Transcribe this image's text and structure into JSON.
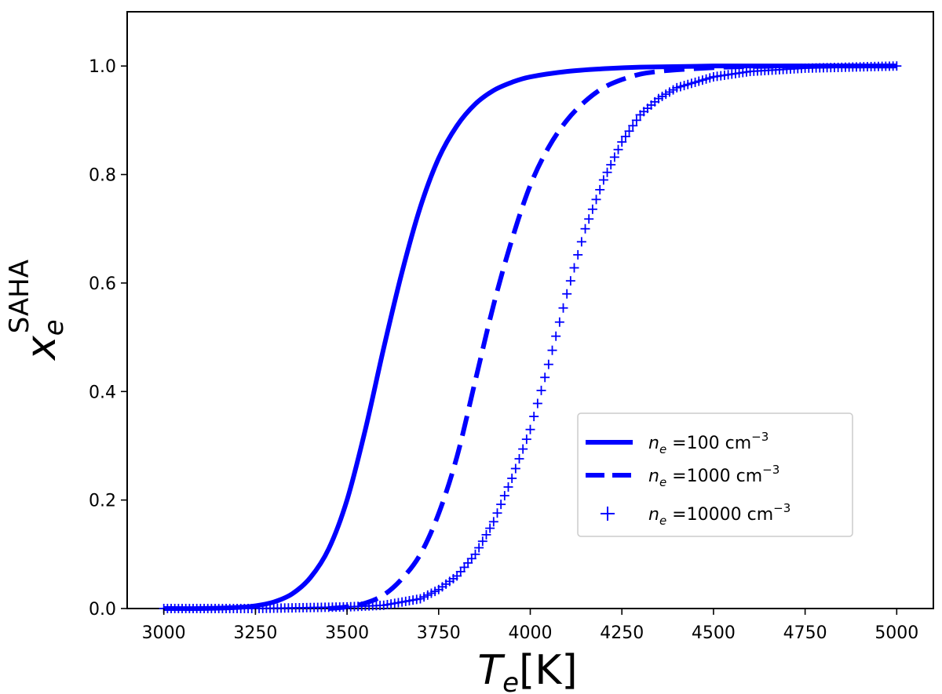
{
  "chart_data": {
    "type": "line",
    "xlabel": {
      "main": "T",
      "sub": "e",
      "unit": "[K]"
    },
    "ylabel": {
      "main": "x",
      "sub": "e",
      "sup": "SAHA"
    },
    "xlim": [
      2900,
      5100
    ],
    "ylim": [
      0.0,
      1.1
    ],
    "xticks": [
      3000,
      3250,
      3500,
      3750,
      4000,
      4250,
      4500,
      4750,
      5000
    ],
    "yticks": [
      0.0,
      0.2,
      0.4,
      0.6,
      0.8,
      1.0
    ],
    "xtick_labels": [
      "3000",
      "3250",
      "3500",
      "3750",
      "4000",
      "4250",
      "4500",
      "4750",
      "5000"
    ],
    "ytick_labels": [
      "0.0",
      "0.2",
      "0.4",
      "0.6",
      "0.8",
      "1.0"
    ],
    "grid": false,
    "legend_position": "center-right",
    "color": "#0000ff",
    "series": [
      {
        "name": "n_e =100 cm^-3",
        "label": {
          "var": "n",
          "sub": "e",
          "text": " =100 cm",
          "sup": "−3"
        },
        "style": "solid",
        "x": [
          3000,
          3100,
          3200,
          3250,
          3300,
          3350,
          3400,
          3450,
          3500,
          3550,
          3600,
          3650,
          3700,
          3750,
          3800,
          3850,
          3900,
          3950,
          4000,
          4100,
          4200,
          4300,
          4500,
          4750,
          5000
        ],
        "y": [
          0.0,
          0.0,
          0.002,
          0.005,
          0.012,
          0.027,
          0.057,
          0.11,
          0.2,
          0.33,
          0.48,
          0.62,
          0.74,
          0.83,
          0.89,
          0.93,
          0.955,
          0.97,
          0.98,
          0.99,
          0.995,
          0.998,
          1.0,
          1.0,
          1.0
        ]
      },
      {
        "name": "n_e =1000 cm^-3",
        "label": {
          "var": "n",
          "sub": "e",
          "text": " =1000 cm",
          "sup": "−3"
        },
        "style": "dashed",
        "x": [
          3450,
          3500,
          3550,
          3600,
          3650,
          3700,
          3750,
          3800,
          3850,
          3900,
          3950,
          4000,
          4050,
          4100,
          4150,
          4200,
          4250,
          4300,
          4350,
          4400,
          4500,
          4600,
          4750,
          5000
        ],
        "y": [
          0.0,
          0.003,
          0.01,
          0.025,
          0.055,
          0.1,
          0.175,
          0.28,
          0.42,
          0.56,
          0.68,
          0.78,
          0.85,
          0.9,
          0.935,
          0.96,
          0.975,
          0.985,
          0.99,
          0.993,
          0.997,
          0.999,
          1.0,
          1.0
        ]
      },
      {
        "name": "n_e =10000 cm^-3",
        "label": {
          "var": "n",
          "sub": "e",
          "text": " =10000 cm",
          "sup": "−3"
        },
        "style": "plus-markers",
        "x": [
          3000,
          3250,
          3500,
          3600,
          3700,
          3750,
          3800,
          3850,
          3900,
          3950,
          4000,
          4050,
          4100,
          4150,
          4200,
          4250,
          4300,
          4350,
          4400,
          4500,
          4600,
          4750,
          5000
        ],
        "y": [
          0.0,
          0.0,
          0.003,
          0.006,
          0.018,
          0.035,
          0.06,
          0.1,
          0.16,
          0.24,
          0.33,
          0.45,
          0.58,
          0.7,
          0.79,
          0.86,
          0.91,
          0.94,
          0.96,
          0.98,
          0.99,
          0.996,
          1.0
        ]
      }
    ]
  }
}
